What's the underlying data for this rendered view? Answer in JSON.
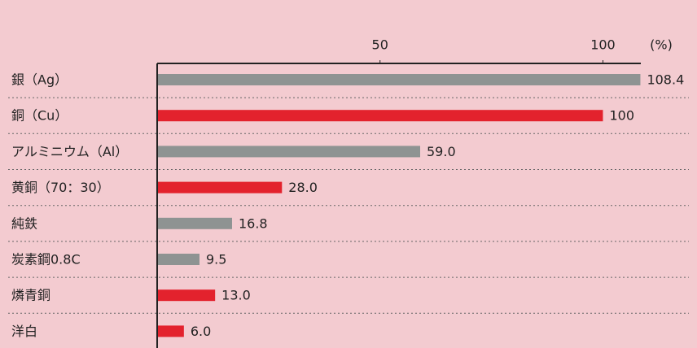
{
  "chart_data": {
    "type": "bar",
    "orientation": "horizontal",
    "x_label": "(%)",
    "categories": [
      "銀（Ag）",
      "銅（Cu）",
      "アルミニウム（Al）",
      "黄銅（70：30）",
      "純鉄",
      "炭素鋼0.8C",
      "燐青銅",
      "洋白"
    ],
    "values": [
      108.4,
      100,
      59.0,
      28.0,
      16.8,
      9.5,
      13.0,
      6.0
    ],
    "value_labels": [
      "108.4",
      "100",
      "59.0",
      "28.0",
      "16.8",
      "9.5",
      "13.0",
      "6.0"
    ],
    "colors": [
      "#8e9392",
      "#e3222d",
      "#8e9392",
      "#e3222d",
      "#8e9392",
      "#8e9392",
      "#e3222d",
      "#e3222d"
    ],
    "xlim": [
      0,
      108.5
    ],
    "xticks": [
      50,
      100
    ],
    "grid": false
  }
}
